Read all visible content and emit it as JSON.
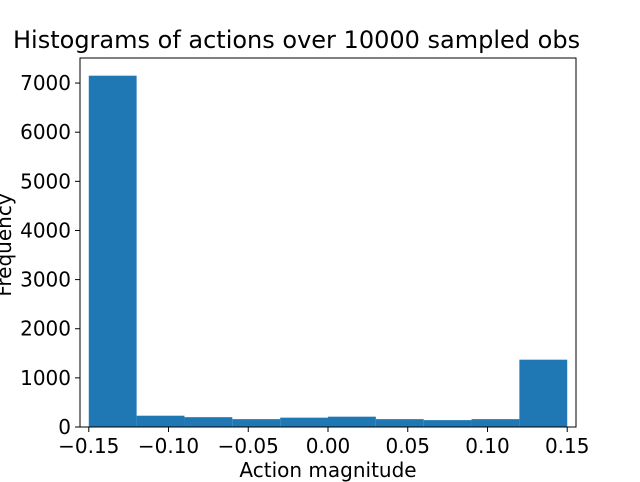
{
  "chart_data": {
    "type": "bar",
    "title": "Histograms of actions over 10000 sampled obs",
    "xlabel": "Action magnitude",
    "ylabel": "Frequency",
    "bin_edges": [
      -0.15,
      -0.12,
      -0.09,
      -0.06,
      -0.03,
      0.0,
      0.03,
      0.06,
      0.09,
      0.12,
      0.15
    ],
    "values": [
      7150,
      230,
      200,
      160,
      190,
      210,
      160,
      140,
      160,
      1370
    ],
    "xlim": [
      -0.1555,
      0.1555
    ],
    "ylim": [
      0,
      7510
    ],
    "xticks": [
      "−0.15",
      "−0.10",
      "−0.05",
      "0.00",
      "0.05",
      "0.10",
      "0.15"
    ],
    "xtick_values": [
      -0.15,
      -0.1,
      -0.05,
      0.0,
      0.05,
      0.1,
      0.15
    ],
    "yticks": [
      "0",
      "1000",
      "2000",
      "3000",
      "4000",
      "5000",
      "6000",
      "7000"
    ],
    "ytick_values": [
      0,
      1000,
      2000,
      3000,
      4000,
      5000,
      6000,
      7000
    ],
    "bar_color": "#1f77b4",
    "grid": false,
    "legend": false
  }
}
